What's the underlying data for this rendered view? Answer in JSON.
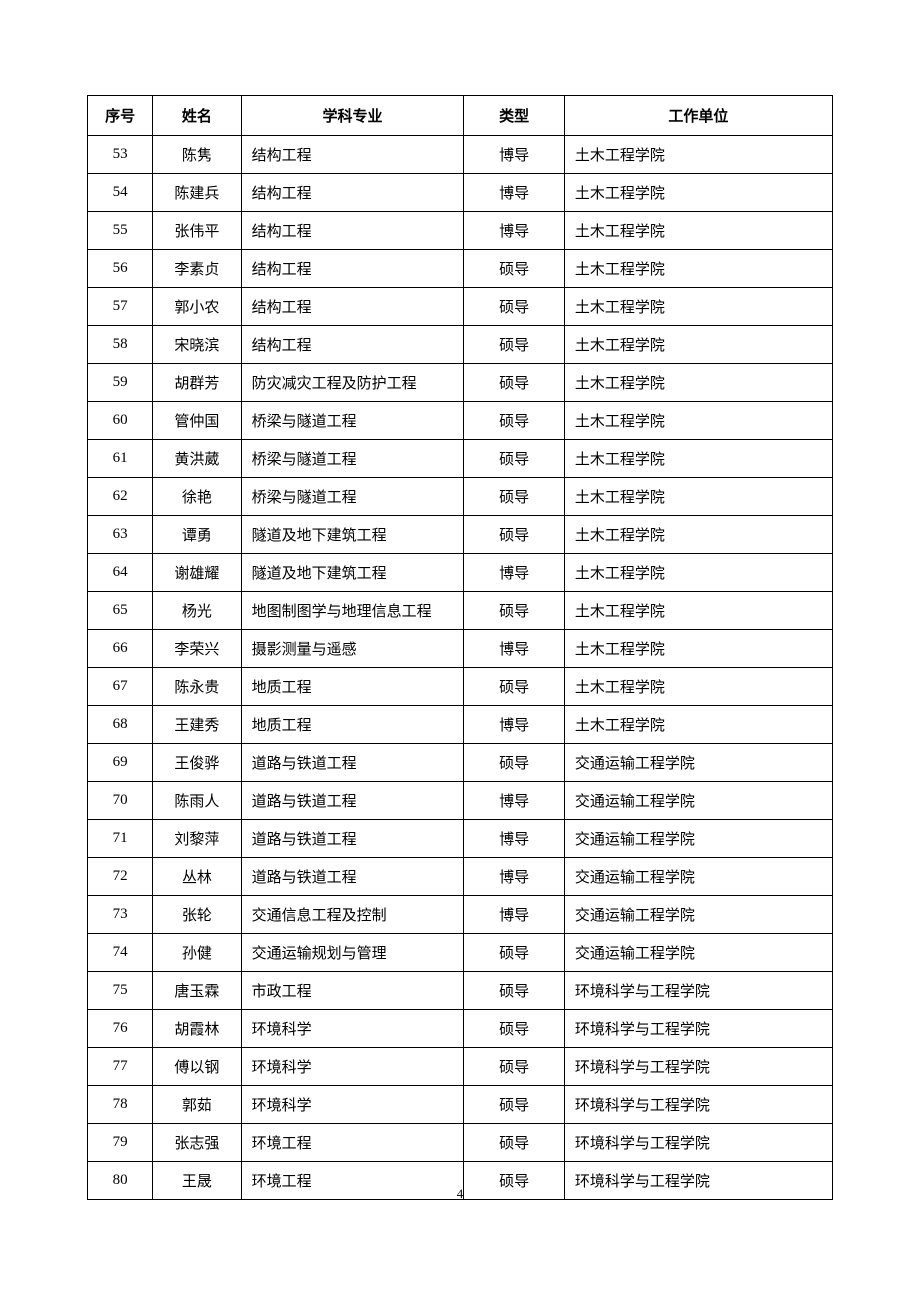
{
  "table": {
    "headers": {
      "seq": "序号",
      "name": "姓名",
      "subject": "学科专业",
      "type": "类型",
      "unit": "工作单位"
    },
    "rows": [
      {
        "seq": "53",
        "name": "陈隽",
        "subject": "结构工程",
        "type": "博导",
        "unit": "土木工程学院"
      },
      {
        "seq": "54",
        "name": "陈建兵",
        "subject": "结构工程",
        "type": "博导",
        "unit": "土木工程学院"
      },
      {
        "seq": "55",
        "name": "张伟平",
        "subject": "结构工程",
        "type": "博导",
        "unit": "土木工程学院"
      },
      {
        "seq": "56",
        "name": "李素贞",
        "subject": "结构工程",
        "type": "硕导",
        "unit": "土木工程学院"
      },
      {
        "seq": "57",
        "name": "郭小农",
        "subject": "结构工程",
        "type": "硕导",
        "unit": "土木工程学院"
      },
      {
        "seq": "58",
        "name": "宋晓滨",
        "subject": "结构工程",
        "type": "硕导",
        "unit": "土木工程学院"
      },
      {
        "seq": "59",
        "name": "胡群芳",
        "subject": "防灾减灾工程及防护工程",
        "type": "硕导",
        "unit": "土木工程学院"
      },
      {
        "seq": "60",
        "name": "管仲国",
        "subject": "桥梁与隧道工程",
        "type": "硕导",
        "unit": "土木工程学院"
      },
      {
        "seq": "61",
        "name": "黄洪葳",
        "subject": "桥梁与隧道工程",
        "type": "硕导",
        "unit": "土木工程学院"
      },
      {
        "seq": "62",
        "name": "徐艳",
        "subject": "桥梁与隧道工程",
        "type": "硕导",
        "unit": "土木工程学院"
      },
      {
        "seq": "63",
        "name": "谭勇",
        "subject": "隧道及地下建筑工程",
        "type": "硕导",
        "unit": "土木工程学院"
      },
      {
        "seq": "64",
        "name": "谢雄耀",
        "subject": "隧道及地下建筑工程",
        "type": "博导",
        "unit": "土木工程学院"
      },
      {
        "seq": "65",
        "name": "杨光",
        "subject": "地图制图学与地理信息工程",
        "type": "硕导",
        "unit": "土木工程学院"
      },
      {
        "seq": "66",
        "name": "李荣兴",
        "subject": "摄影测量与遥感",
        "type": "博导",
        "unit": "土木工程学院"
      },
      {
        "seq": "67",
        "name": "陈永贵",
        "subject": "地质工程",
        "type": "硕导",
        "unit": "土木工程学院"
      },
      {
        "seq": "68",
        "name": "王建秀",
        "subject": "地质工程",
        "type": "博导",
        "unit": "土木工程学院"
      },
      {
        "seq": "69",
        "name": "王俊骅",
        "subject": "道路与铁道工程",
        "type": "硕导",
        "unit": "交通运输工程学院"
      },
      {
        "seq": "70",
        "name": "陈雨人",
        "subject": "道路与铁道工程",
        "type": "博导",
        "unit": "交通运输工程学院"
      },
      {
        "seq": "71",
        "name": "刘黎萍",
        "subject": "道路与铁道工程",
        "type": "博导",
        "unit": "交通运输工程学院"
      },
      {
        "seq": "72",
        "name": "丛林",
        "subject": "道路与铁道工程",
        "type": "博导",
        "unit": "交通运输工程学院"
      },
      {
        "seq": "73",
        "name": "张轮",
        "subject": "交通信息工程及控制",
        "type": "博导",
        "unit": "交通运输工程学院"
      },
      {
        "seq": "74",
        "name": "孙健",
        "subject": "交通运输规划与管理",
        "type": "硕导",
        "unit": "交通运输工程学院"
      },
      {
        "seq": "75",
        "name": "唐玉霖",
        "subject": "市政工程",
        "type": "硕导",
        "unit": "环境科学与工程学院"
      },
      {
        "seq": "76",
        "name": "胡霞林",
        "subject": "环境科学",
        "type": "硕导",
        "unit": "环境科学与工程学院"
      },
      {
        "seq": "77",
        "name": "傅以钢",
        "subject": "环境科学",
        "type": "硕导",
        "unit": "环境科学与工程学院"
      },
      {
        "seq": "78",
        "name": "郭茹",
        "subject": "环境科学",
        "type": "硕导",
        "unit": "环境科学与工程学院"
      },
      {
        "seq": "79",
        "name": "张志强",
        "subject": "环境工程",
        "type": "硕导",
        "unit": "环境科学与工程学院"
      },
      {
        "seq": "80",
        "name": "王晟",
        "subject": "环境工程",
        "type": "硕导",
        "unit": "环境科学与工程学院"
      }
    ]
  },
  "page_number": "4"
}
